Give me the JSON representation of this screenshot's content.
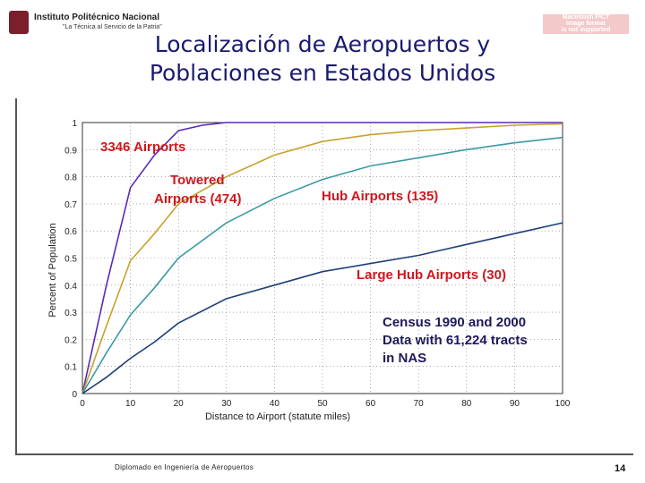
{
  "header": {
    "institution": "Instituto Politécnico Nacional",
    "motto": "\"La Técnica al Servicio de la Patria\"",
    "stamp_lines": [
      "Macintosh PICT",
      "image format",
      "is not supported"
    ]
  },
  "slide": {
    "title_line1": "Localización de Aeropuertos y",
    "title_line2": "Poblaciones en Estados Unidos",
    "footer": "Diplomado en Ingeniería de Aeropuertos",
    "page_number": "14"
  },
  "colors": {
    "title": "#1a1a6e",
    "annotation_red": "#d0171d",
    "annotation_navy": "#1c1a5a"
  },
  "chart_data": {
    "type": "line",
    "xlabel": "Distance to Airport (statute miles)",
    "ylabel": "Percent of Population",
    "xlim": [
      0,
      100
    ],
    "ylim": [
      0,
      1
    ],
    "x_ticks": [
      0,
      10,
      20,
      30,
      40,
      50,
      60,
      70,
      80,
      90,
      100
    ],
    "y_ticks": [
      0,
      0.1,
      0.2,
      0.3,
      0.4,
      0.5,
      0.6,
      0.7,
      0.8,
      0.9,
      1
    ],
    "y_tick_labels": [
      "0",
      "0.1",
      "0.2",
      "0.3",
      "0.4",
      "0.5",
      "0.6",
      "0.7",
      "0.8",
      "0.9",
      "1"
    ],
    "grid": true,
    "series": [
      {
        "name": "3346 Airports",
        "color": "#5a2ab8",
        "x": [
          0,
          5,
          10,
          15,
          20,
          25,
          30,
          40,
          60,
          80,
          100
        ],
        "y": [
          0,
          0.4,
          0.76,
          0.88,
          0.97,
          0.99,
          1.0,
          1.0,
          1.0,
          1.0,
          1.0
        ]
      },
      {
        "name": "Towered Airports (474)",
        "color": "#c9a12a",
        "x": [
          0,
          5,
          10,
          15,
          20,
          30,
          40,
          50,
          60,
          70,
          80,
          90,
          100
        ],
        "y": [
          0,
          0.25,
          0.49,
          0.59,
          0.7,
          0.8,
          0.88,
          0.93,
          0.955,
          0.97,
          0.98,
          0.99,
          0.995
        ]
      },
      {
        "name": "Hub Airports (135)",
        "color": "#3a9aa6",
        "x": [
          0,
          5,
          10,
          15,
          20,
          30,
          40,
          50,
          60,
          70,
          80,
          90,
          100
        ],
        "y": [
          0,
          0.15,
          0.29,
          0.39,
          0.5,
          0.63,
          0.72,
          0.79,
          0.84,
          0.87,
          0.9,
          0.925,
          0.945
        ]
      },
      {
        "name": "Large Hub Airports (30)",
        "color": "#1e3f78",
        "x": [
          0,
          5,
          10,
          15,
          20,
          30,
          40,
          50,
          60,
          70,
          80,
          90,
          100
        ],
        "y": [
          0,
          0.06,
          0.13,
          0.19,
          0.26,
          0.35,
          0.4,
          0.45,
          0.48,
          0.51,
          0.55,
          0.59,
          0.63
        ]
      }
    ],
    "annotations": [
      "3346 Airports",
      "Towered",
      "Airports (474)",
      "Hub Airports (135)",
      "Large Hub Airports (30)",
      "Census 1990 and 2000",
      "Data with 61,224 tracts",
      "in NAS"
    ]
  }
}
